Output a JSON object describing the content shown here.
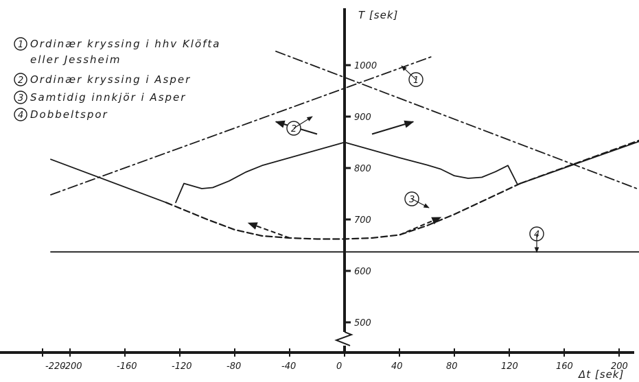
{
  "chart_data": {
    "type": "line",
    "title": "",
    "xlabel": "Δt [sek]",
    "ylabel": "T [sek]",
    "xlim": [
      -220,
      200
    ],
    "ylim": [
      470,
      1030
    ],
    "x_ticks": [
      -220,
      -200,
      -160,
      -120,
      -80,
      -40,
      0,
      40,
      80,
      120,
      160,
      200
    ],
    "x_tick_labels": [
      "-220",
      "-200",
      "-160",
      "-120",
      "-80",
      "-40",
      "0",
      "40",
      "80",
      "120",
      "160",
      "200"
    ],
    "y_ticks": [
      500,
      600,
      700,
      800,
      900,
      1000
    ],
    "y_tick_labels": [
      "500",
      "600",
      "700",
      "800",
      "900",
      "1000"
    ],
    "axis_break": true,
    "legend": [
      {
        "marker": "1",
        "label": "Ordinær kryssing i hhv Klöfta",
        "label_cont": "eller Jessheim"
      },
      {
        "marker": "2",
        "label": "Ordinær kryssing i Asper"
      },
      {
        "marker": "3",
        "label": "Samtidig innkjör i Asper"
      },
      {
        "marker": "4",
        "label": "Dobbeltspor"
      }
    ],
    "series": [
      {
        "marker": "1",
        "style": "dashdot",
        "part": "rising",
        "x": [
          -214,
          65
        ],
        "y": [
          748,
          1018
        ]
      },
      {
        "marker": "1",
        "style": "dashdot",
        "part": "falling",
        "x": [
          -50,
          218
        ],
        "y": [
          1027,
          755
        ]
      },
      {
        "marker": "2",
        "style": "solid",
        "part": "outer-left",
        "x": [
          -214,
          -130
        ],
        "y": [
          817,
          733
        ]
      },
      {
        "marker": "2",
        "style": "solid",
        "part": "apex",
        "x": [
          -123,
          -117,
          -104,
          -96,
          -84,
          -72,
          -60,
          -40,
          -20,
          0,
          20,
          40,
          60,
          70,
          80,
          90,
          100,
          110,
          119,
          126
        ],
        "y": [
          733,
          770,
          760,
          762,
          775,
          792,
          805,
          820,
          835,
          850,
          835,
          820,
          806,
          798,
          785,
          780,
          782,
          793,
          805,
          768
        ]
      },
      {
        "marker": "2",
        "style": "solid",
        "part": "outer-right",
        "x": [
          126,
          218
        ],
        "y": [
          768,
          855
        ]
      },
      {
        "marker": "3",
        "style": "dashed",
        "part": "curve",
        "x": [
          -130,
          -100,
          -80,
          -60,
          -40,
          -20,
          0,
          20,
          40,
          60,
          80,
          100,
          128
        ],
        "y": [
          733,
          700,
          680,
          668,
          664,
          662,
          662,
          664,
          670,
          688,
          710,
          735,
          770
        ]
      },
      {
        "marker": "3",
        "style": "dashed",
        "part": "right-extension",
        "x": [
          128,
          218
        ],
        "y": [
          770,
          857
        ]
      },
      {
        "marker": "4",
        "style": "solid",
        "part": "horizontal",
        "x": [
          -214,
          218
        ],
        "y": [
          637,
          637
        ]
      }
    ],
    "colors": {
      "ink": "#1a1a1a",
      "background": "#ffffff"
    }
  }
}
